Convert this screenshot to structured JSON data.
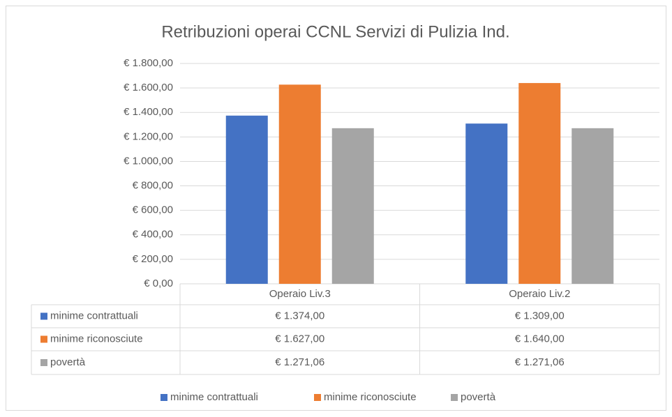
{
  "chart_data": {
    "type": "bar",
    "title": "Retribuzioni operai CCNL Servizi di Pulizia Ind.",
    "categories": [
      "Operaio Liv.3",
      "Operaio Liv.2"
    ],
    "series": [
      {
        "name": "minime contrattuali",
        "color": "#4472c4",
        "values": [
          1374,
          1309
        ],
        "value_labels": [
          "€ 1.374,00",
          "€ 1.309,00"
        ]
      },
      {
        "name": "minime riconosciute",
        "color": "#ed7d31",
        "values": [
          1627,
          1640
        ],
        "value_labels": [
          "€ 1.627,00",
          "€ 1.640,00"
        ]
      },
      {
        "name": "povertà",
        "color": "#a5a5a5",
        "values": [
          1271.06,
          1271.06
        ],
        "value_labels": [
          "€ 1.271,06",
          "€ 1.271,06"
        ]
      }
    ],
    "ylim": [
      0,
      1800
    ],
    "yticks": [
      {
        "value": 0,
        "label": "€ 0,00"
      },
      {
        "value": 200,
        "label": "€ 200,00"
      },
      {
        "value": 400,
        "label": "€ 400,00"
      },
      {
        "value": 600,
        "label": "€ 600,00"
      },
      {
        "value": 800,
        "label": "€ 800,00"
      },
      {
        "value": 1000,
        "label": "€ 1.000,00"
      },
      {
        "value": 1200,
        "label": "€ 1.200,00"
      },
      {
        "value": 1400,
        "label": "€ 1.400,00"
      },
      {
        "value": 1600,
        "label": "€ 1.600,00"
      },
      {
        "value": 1800,
        "label": "€ 1.800,00"
      }
    ],
    "grid": true,
    "legend": "bottom"
  }
}
